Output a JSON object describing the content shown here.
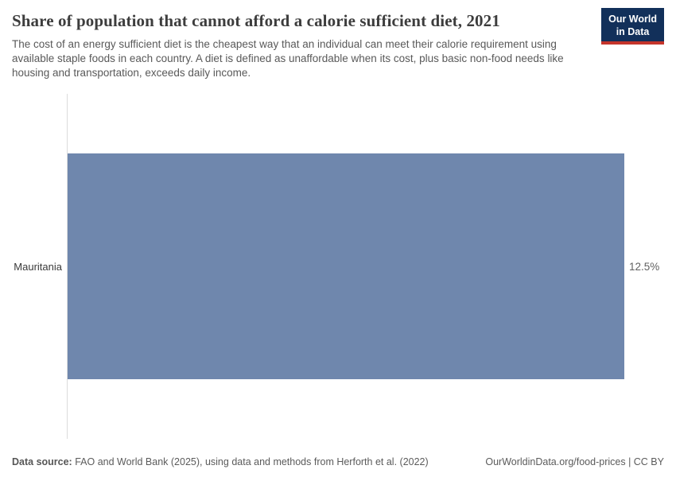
{
  "header": {
    "title": "Share of population that cannot afford a calorie sufficient diet, 2021",
    "subtitle": "The cost of an energy sufficient diet is the cheapest way that an individual can meet their calorie requirement using available staple foods in each country. A diet is defined as unaffordable when its cost, plus basic non-food needs like housing and transportation, exceeds daily income.",
    "logo": {
      "line1": "Our World",
      "line2": "in Data"
    }
  },
  "chart_data": {
    "type": "bar",
    "orientation": "horizontal",
    "title": "Share of population that cannot afford a calorie sufficient diet, 2021",
    "year": "2021",
    "categories": [
      "Mauritania"
    ],
    "values": [
      12.5
    ],
    "value_labels": [
      "12.5%"
    ],
    "xlim": [
      0,
      12.5
    ],
    "grid": false,
    "legend": "none",
    "bar_color": "#6f87ad"
  },
  "colors": {
    "bar": "#6f87ad",
    "axis_line": "#dcdcdc",
    "title_text": "#3d3d3d",
    "subtitle_text": "#595959",
    "entity_label": "#3a3a3a",
    "value_label": "#616161",
    "footer_text": "#5b5b5b",
    "logo_background": "#12305a",
    "logo_accent_red": "#c4342b"
  },
  "footer": {
    "data_source_label": "Data source:",
    "data_source_text": "FAO and World Bank (2025), using data and methods from Herforth et al. (2022)",
    "right_text": "OurWorldinData.org/food-prices | CC BY"
  }
}
